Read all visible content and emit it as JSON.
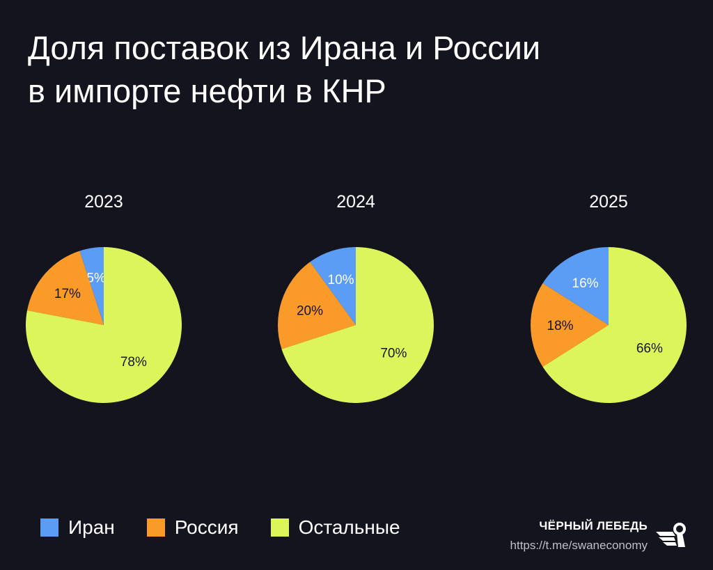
{
  "title_lines": [
    "Доля поставок из Ирана и России",
    "в импорте нефти в КНР"
  ],
  "colors": {
    "background": "#14141f",
    "Иран": "#5b9cf5",
    "Россия": "#fa9a28",
    "Остальные": "#dcf55a"
  },
  "chart_data": [
    {
      "type": "pie",
      "title": "2023",
      "labels": [
        "Иран",
        "Россия",
        "Остальные"
      ],
      "values": [
        5,
        17,
        78
      ],
      "value_labels": [
        "5%",
        "17%",
        "78%"
      ],
      "start": "top",
      "direction": "counterclockwise"
    },
    {
      "type": "pie",
      "title": "2024",
      "labels": [
        "Иран",
        "Россия",
        "Остальные"
      ],
      "values": [
        10,
        20,
        70
      ],
      "value_labels": [
        "10%",
        "20%",
        "70%"
      ],
      "start": "top",
      "direction": "counterclockwise"
    },
    {
      "type": "pie",
      "title": "2025",
      "labels": [
        "Иран",
        "Россия",
        "Остальные"
      ],
      "values": [
        16,
        18,
        66
      ],
      "value_labels": [
        "16%",
        "18%",
        "66%"
      ],
      "start": "top",
      "direction": "counterclockwise"
    }
  ],
  "legend": {
    "placement": "bottom-left",
    "items": [
      "Иран",
      "Россия",
      "Остальные"
    ]
  },
  "brand": {
    "name": "ЧЁРНЫЙ ЛЕБЕДЬ",
    "url": "https://t.me/swaneconomy",
    "logo_icon": "swan-logo-icon"
  }
}
